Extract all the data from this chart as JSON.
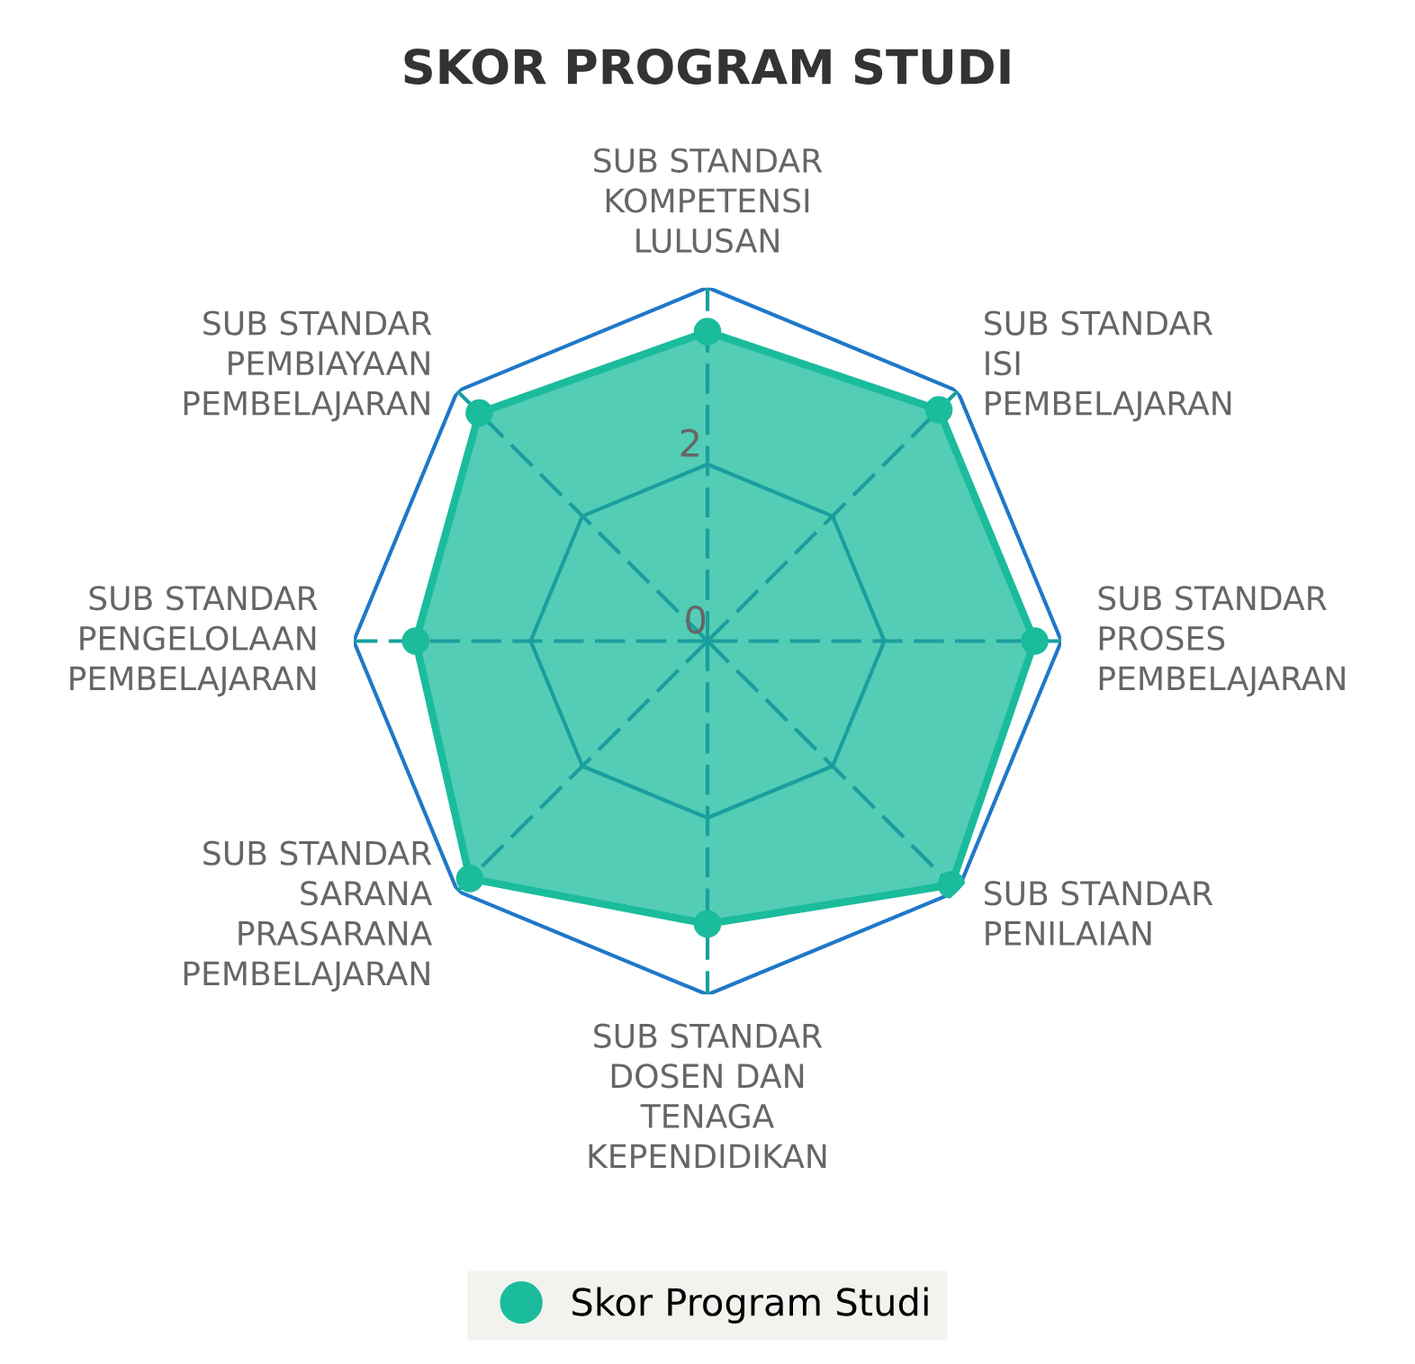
{
  "chart_data": {
    "type": "radar",
    "title": "SKOR PROGRAM STUDI",
    "categories": [
      "SUB STANDAR\nKOMPETENSI\nLULUSAN",
      "SUB STANDAR\nISI\nPEMBELAJARAN",
      "SUB STANDAR\nPROSES\nPEMBELAJARAN",
      "SUB STANDAR\nPENILAIAN",
      "SUB STANDAR\nDOSEN DAN\nTENAGA\nKEPENDIDIKAN",
      "SUB STANDAR\nSARANA\nPRASARANA\nPEMBELAJARAN",
      "SUB STANDAR\nPENGELOLAAN\nPEMBELAJARAN",
      "SUB STANDAR\nPEMBIAYAAN\nPEMBELAJARAN"
    ],
    "series": [
      {
        "name": "Skor Program Studi",
        "color": "#1abc9c",
        "values": [
          3.5,
          3.7,
          3.7,
          3.9,
          3.2,
          3.8,
          3.3,
          3.65
        ]
      }
    ],
    "ylim": [
      0,
      4
    ],
    "yticks": [
      0,
      2
    ],
    "grid": true,
    "legend": "bottom",
    "marker": "circle"
  }
}
